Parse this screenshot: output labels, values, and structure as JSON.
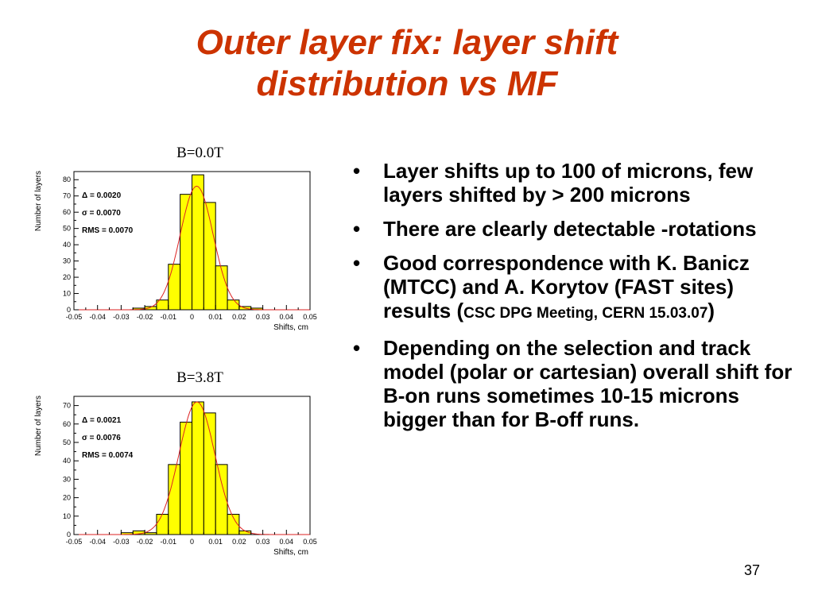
{
  "slide": {
    "title_line1": "Outer layer fix: layer shift",
    "title_line2": "distribution vs MF",
    "page_number": "37",
    "bullet_glyph": "•",
    "bullets": [
      {
        "text": "Layer shifts up to 100 of microns, few layers shifted by > 200 microns"
      },
      {
        "text": "There are clearly detectable -rotations"
      },
      {
        "text_main": "Good correspondence with K. Banicz (MTCC) and A. Korytov (FAST sites) results (",
        "text_small": "CSC DPG Meeting, CERN 15.03.07",
        "text_close": ")"
      },
      {
        "text": "Depending on the selection and track model (polar or cartesian) overall shift for B-on runs sometimes 10-15 microns bigger than for B-off runs."
      }
    ]
  },
  "chart_data": [
    {
      "type": "bar",
      "title": "B=0.0T",
      "xlabel": "Shifts, cm",
      "ylabel": "Number of layers",
      "xlim": [
        -0.05,
        0.05
      ],
      "ylim": [
        0,
        85
      ],
      "x_tick_labels": [
        "-0.05",
        "-0.04",
        "-0.03",
        "-0.02",
        "-0.01",
        "0",
        "0.01",
        "0.02",
        "0.03",
        "0.04",
        "0.05"
      ],
      "y_tick_labels": [
        "0",
        "10",
        "20",
        "30",
        "40",
        "50",
        "60",
        "70",
        "80"
      ],
      "bin_edges": [
        -0.025,
        -0.02,
        -0.015,
        -0.01,
        -0.005,
        0,
        0.005,
        0.01,
        0.015,
        0.02,
        0.025,
        0.03
      ],
      "values": [
        1,
        2,
        6,
        28,
        71,
        83,
        66,
        27,
        6,
        2,
        1
      ],
      "fit": {
        "type": "gaussian",
        "amplitude": 76,
        "mean": 0.002,
        "sigma": 0.007
      },
      "stats": [
        "Δ = 0.0020",
        "σ = 0.0070",
        "RMS = 0.0070"
      ],
      "colors": {
        "fill": "#ffff00",
        "fit": "#dd2222"
      }
    },
    {
      "type": "bar",
      "title": "B=3.8T",
      "xlabel": "Shifts, cm",
      "ylabel": "Number of layers",
      "xlim": [
        -0.05,
        0.05
      ],
      "ylim": [
        0,
        75
      ],
      "x_tick_labels": [
        "-0.05",
        "-0.04",
        "-0.03",
        "-0.02",
        "-0.01",
        "0",
        "0.01",
        "0.02",
        "0.03",
        "0.04",
        "0.05"
      ],
      "y_tick_labels": [
        "0",
        "10",
        "20",
        "30",
        "40",
        "50",
        "60",
        "70"
      ],
      "bin_edges": [
        -0.03,
        -0.025,
        -0.02,
        -0.015,
        -0.01,
        -0.005,
        0,
        0.005,
        0.01,
        0.015,
        0.02,
        0.025
      ],
      "values": [
        1,
        2,
        1,
        11,
        38,
        61,
        72,
        66,
        38,
        11,
        2
      ],
      "fit": {
        "type": "gaussian",
        "amplitude": 72,
        "mean": 0.0021,
        "sigma": 0.0076
      },
      "stats": [
        "Δ = 0.0021",
        "σ = 0.0076",
        "RMS = 0.0074"
      ],
      "colors": {
        "fill": "#ffff00",
        "fit": "#dd2222"
      }
    }
  ]
}
